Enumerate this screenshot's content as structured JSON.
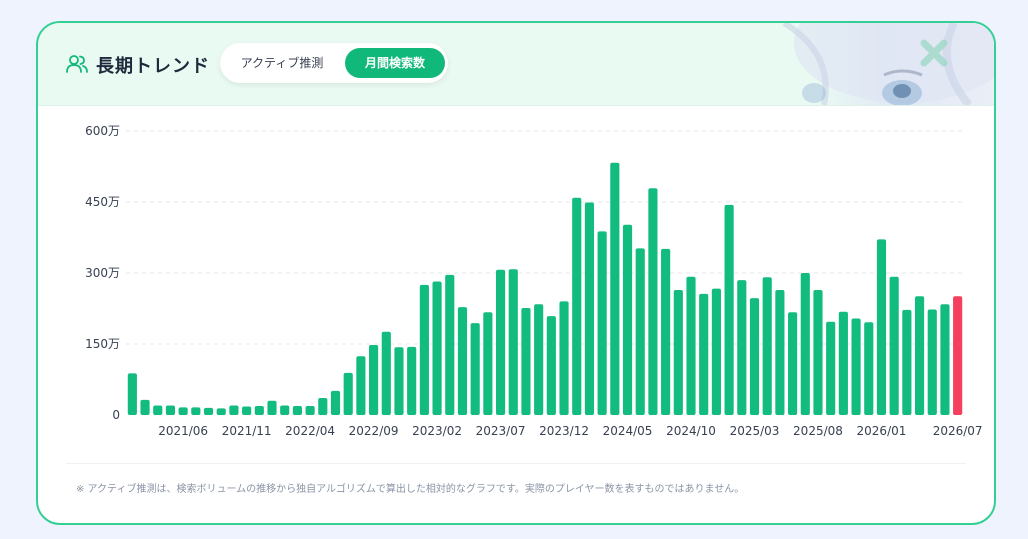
{
  "header": {
    "title": "長期トレンド",
    "tabs": [
      "アクティブ推測",
      "月間検索数"
    ],
    "active_tab": "月間検索数"
  },
  "colors": {
    "accent": "#10b97a",
    "bar": "#12bb7e",
    "highlight": "#f43f5e",
    "border": "#34cf93"
  },
  "icons": {
    "title_icon": "users-icon"
  },
  "chart_data": {
    "type": "bar",
    "ylim": [
      0,
      6000000
    ],
    "yticks": [
      0,
      1500000,
      3000000,
      4500000,
      6000000
    ],
    "ytick_labels": [
      "0",
      "150万",
      "300万",
      "450万",
      "600万"
    ],
    "xtick_labels": [
      "2021/06",
      "2021/11",
      "2022/04",
      "2022/09",
      "2023/02",
      "2023/07",
      "2023/12",
      "2024/05",
      "2024/10",
      "2025/03",
      "2025/08",
      "2026/01",
      "2026/07"
    ],
    "xtick_indices": [
      4,
      9,
      14,
      19,
      24,
      29,
      34,
      39,
      44,
      49,
      54,
      59,
      65
    ],
    "grid": true,
    "highlight_last": true,
    "values": [
      880000,
      320000,
      200000,
      200000,
      160000,
      160000,
      150000,
      140000,
      200000,
      180000,
      190000,
      300000,
      200000,
      190000,
      190000,
      360000,
      510000,
      890000,
      1240000,
      1480000,
      1760000,
      1430000,
      1440000,
      2750000,
      2820000,
      2960000,
      2280000,
      1940000,
      2170000,
      3070000,
      3080000,
      2260000,
      2340000,
      2090000,
      2400000,
      4590000,
      4490000,
      3880000,
      5330000,
      4020000,
      3520000,
      4790000,
      3510000,
      2640000,
      2920000,
      2560000,
      2670000,
      4440000,
      2850000,
      2470000,
      2910000,
      2640000,
      2170000,
      3000000,
      2640000,
      1970000,
      2180000,
      2040000,
      1960000,
      3710000,
      2920000,
      2220000,
      2510000,
      2230000,
      2340000,
      2510000
    ]
  },
  "footnote": "※ アクティブ推測は、検索ボリュームの推移から独自アルゴリズムで算出した相対的なグラフです。実際のプレイヤー数を表すものではありません。"
}
